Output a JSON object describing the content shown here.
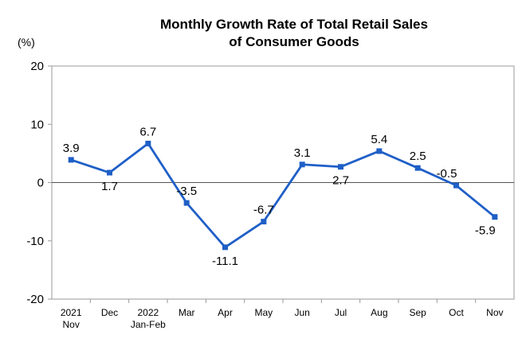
{
  "chart_data": {
    "type": "line",
    "title_line1": "Monthly Growth Rate of Total Retail Sales",
    "title_line2": "of Consumer Goods",
    "unit": "(%)",
    "xlabel": "",
    "ylabel": "",
    "ylim": [
      -20,
      20
    ],
    "y_ticks": [
      "20",
      "10",
      "0",
      "-10",
      "-20"
    ],
    "grid": false,
    "categories": [
      [
        "2021",
        "Nov"
      ],
      [
        "Dec"
      ],
      [
        "2022",
        "Jan-Feb"
      ],
      [
        "Mar"
      ],
      [
        "Apr"
      ],
      [
        "May"
      ],
      [
        "Jun"
      ],
      [
        "Jul"
      ],
      [
        "Aug"
      ],
      [
        "Sep"
      ],
      [
        "Oct"
      ],
      [
        "Nov"
      ]
    ],
    "series": [
      {
        "values": [
          3.9,
          1.7,
          6.7,
          -3.5,
          -11.1,
          -6.7,
          3.1,
          2.7,
          5.4,
          2.5,
          -0.5,
          -5.9
        ],
        "labels": [
          "3.9",
          "1.7",
          "6.7",
          "-3.5",
          "-11.1",
          "-6.7",
          "3.1",
          "2.7",
          "5.4",
          "2.5",
          "-0.5",
          "-5.9"
        ],
        "color": "#1f5fc7"
      }
    ]
  }
}
